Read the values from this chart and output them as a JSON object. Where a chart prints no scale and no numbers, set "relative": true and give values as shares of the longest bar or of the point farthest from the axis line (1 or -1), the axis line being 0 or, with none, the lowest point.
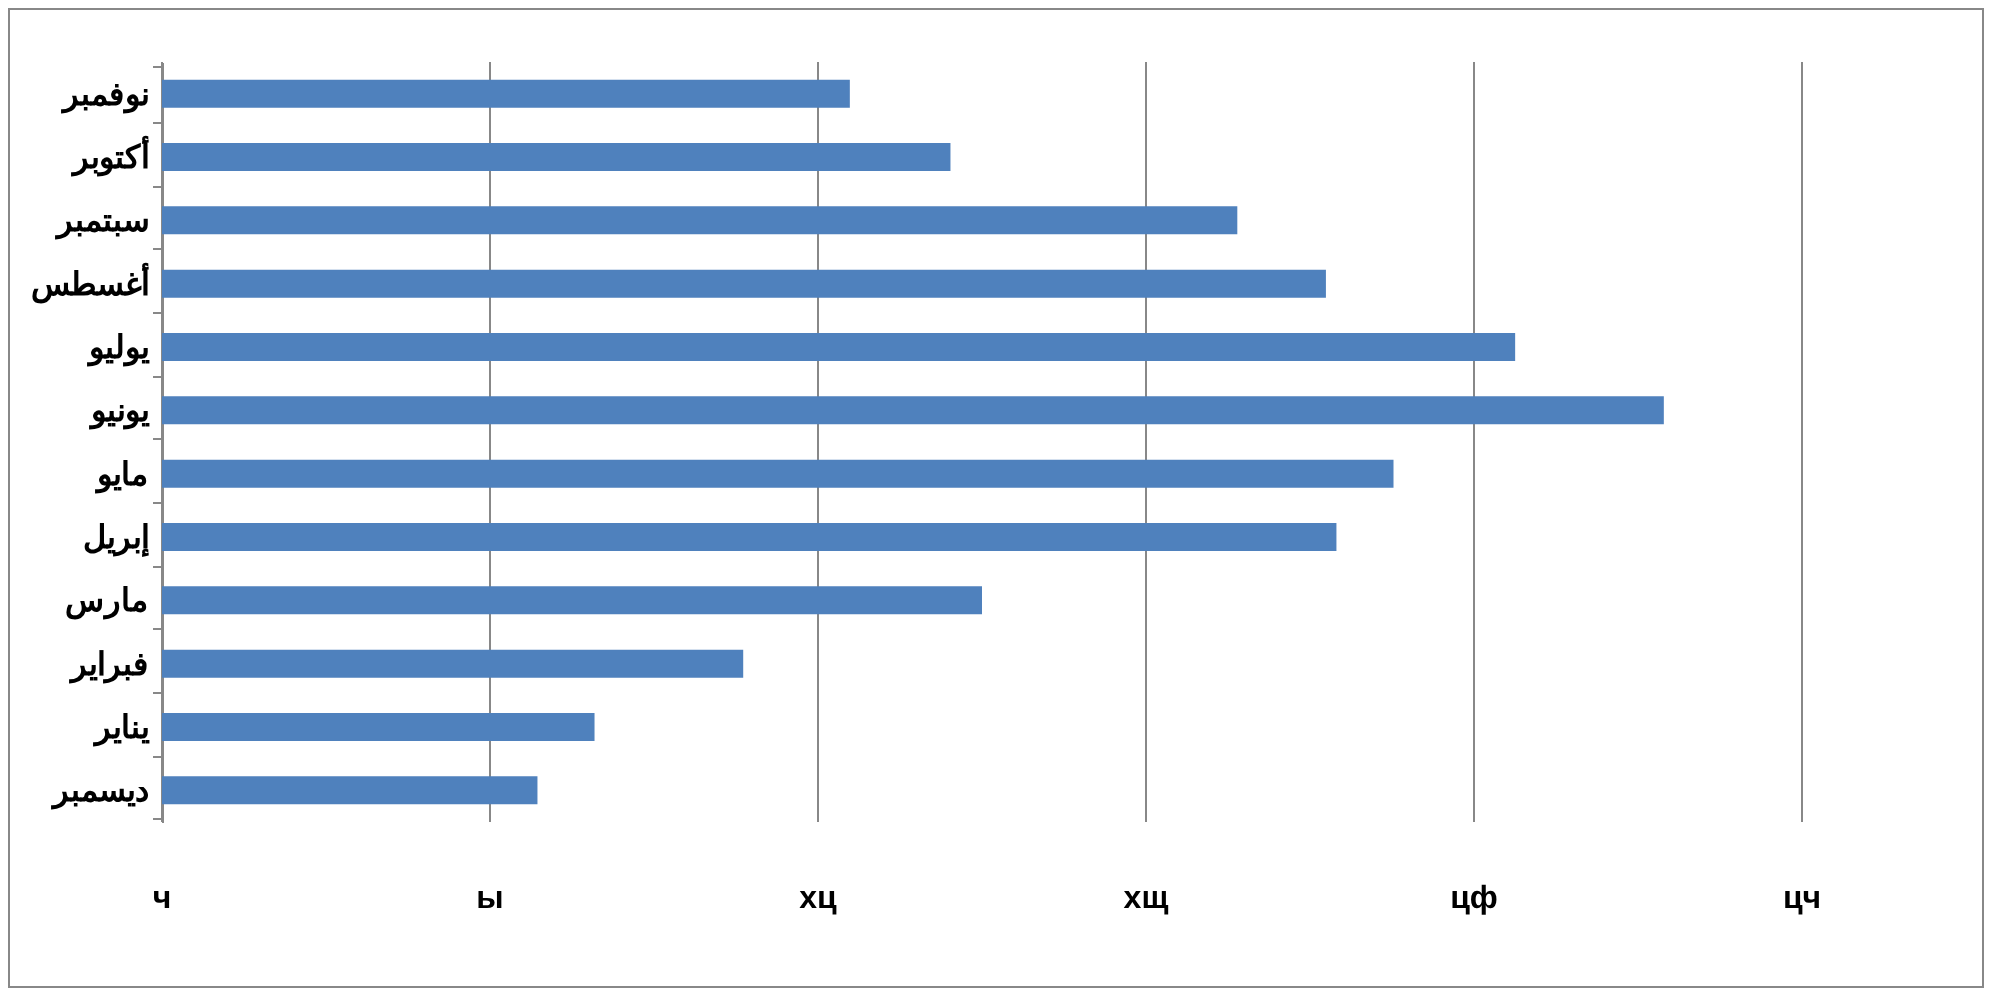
{
  "chart_data": {
    "type": "bar",
    "orientation": "horizontal",
    "relative": true,
    "categories": [
      "نوفمبر",
      "أكتوبر",
      "سبتمبر",
      "أغسطس",
      "يوليو",
      "يونيو",
      "مايو",
      "إبريل",
      "مارس",
      "فبراير",
      "يناير",
      "ديسمبر"
    ],
    "values": [
      0.458,
      0.525,
      0.716,
      0.775,
      0.901,
      1,
      0.82,
      0.782,
      0.546,
      0.387,
      0.288,
      0.25
    ],
    "color": "#4f81bd",
    "annotations": [
      "ч",
      "ы",
      "хц",
      "хщ",
      "цф",
      "цч"
    ],
    "grid": "x"
  }
}
